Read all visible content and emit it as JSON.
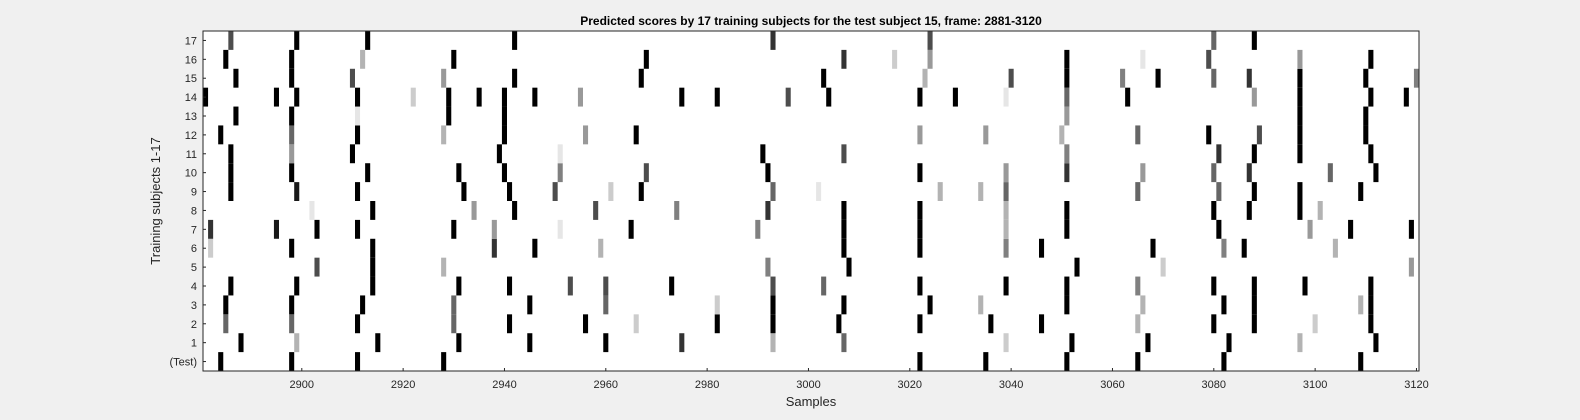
{
  "chart_data": {
    "type": "heatmap",
    "title": "Predicted scores by 17 training subjects for the test subject 15, frame: 2881-3120",
    "xlabel": "Samples",
    "ylabel": "Training subjects 1-17",
    "xlim": [
      2881,
      3120
    ],
    "x_ticks": [
      "2900",
      "2920",
      "2940",
      "2960",
      "2980",
      "3000",
      "3020",
      "3040",
      "3060",
      "3080",
      "3100",
      "3120"
    ],
    "rows": [
      "(Test)",
      "1",
      "2",
      "3",
      "4",
      "5",
      "6",
      "7",
      "8",
      "9",
      "10",
      "11",
      "12",
      "13",
      "14",
      "15",
      "16",
      "17"
    ],
    "colormap": "grayscale: 0 = white, 1 = black",
    "grid": false,
    "cells": {
      "(Test)": [
        [
          2884,
          1
        ],
        [
          2898,
          1
        ],
        [
          2911,
          1
        ],
        [
          2928,
          1
        ],
        [
          3022,
          1
        ],
        [
          3035,
          1
        ],
        [
          3051,
          1
        ],
        [
          3065,
          1
        ],
        [
          3082,
          1
        ],
        [
          3109,
          1
        ]
      ],
      "1": [
        [
          2888,
          1
        ],
        [
          2899,
          0.3
        ],
        [
          2915,
          1
        ],
        [
          2931,
          1
        ],
        [
          2945,
          1
        ],
        [
          2960,
          1
        ],
        [
          2975,
          0.8
        ],
        [
          2993,
          0.3
        ],
        [
          3007,
          0.6
        ],
        [
          3039,
          0.2
        ],
        [
          3052,
          1
        ],
        [
          3067,
          1
        ],
        [
          3083,
          1
        ],
        [
          3097,
          0.3
        ],
        [
          3112,
          1
        ]
      ],
      "2": [
        [
          2885,
          0.6
        ],
        [
          2898,
          0.6
        ],
        [
          2911,
          1
        ],
        [
          2930,
          0.6
        ],
        [
          2941,
          1
        ],
        [
          2956,
          1
        ],
        [
          2966,
          0.2
        ],
        [
          2982,
          1
        ],
        [
          2993,
          1
        ],
        [
          3006,
          1
        ],
        [
          3022,
          1
        ],
        [
          3036,
          1
        ],
        [
          3046,
          1
        ],
        [
          3065,
          0.3
        ],
        [
          3080,
          1
        ],
        [
          3088,
          1
        ],
        [
          3100,
          0.2
        ],
        [
          3111,
          1
        ]
      ],
      "3": [
        [
          2885,
          1
        ],
        [
          2898,
          1
        ],
        [
          2912,
          1
        ],
        [
          2930,
          0.6
        ],
        [
          2945,
          1
        ],
        [
          2960,
          0.6
        ],
        [
          2982,
          0.2
        ],
        [
          2993,
          1
        ],
        [
          3007,
          1
        ],
        [
          3024,
          1
        ],
        [
          3034,
          0.3
        ],
        [
          3051,
          1
        ],
        [
          3066,
          0.3
        ],
        [
          3082,
          1
        ],
        [
          3088,
          1
        ],
        [
          3109,
          0.3
        ],
        [
          3111,
          1
        ]
      ],
      "4": [
        [
          2886,
          1
        ],
        [
          2899,
          1
        ],
        [
          2914,
          1
        ],
        [
          2931,
          1
        ],
        [
          2941,
          1
        ],
        [
          2953,
          0.7
        ],
        [
          2960,
          0.7
        ],
        [
          2973,
          1
        ],
        [
          2993,
          0.7
        ],
        [
          3003,
          0.6
        ],
        [
          3022,
          1
        ],
        [
          3039,
          1
        ],
        [
          3051,
          1
        ],
        [
          3065,
          0.5
        ],
        [
          3080,
          1
        ],
        [
          3088,
          1
        ],
        [
          3098,
          1
        ],
        [
          3111,
          1
        ]
      ],
      "5": [
        [
          2903,
          0.7
        ],
        [
          2914,
          1
        ],
        [
          2928,
          0.3
        ],
        [
          2992,
          0.5
        ],
        [
          3008,
          1
        ],
        [
          3053,
          1
        ],
        [
          3070,
          0.2
        ],
        [
          3119,
          0.4
        ]
      ],
      "6": [
        [
          2882,
          0.2
        ],
        [
          2898,
          1
        ],
        [
          2914,
          1
        ],
        [
          2938,
          0.8
        ],
        [
          2946,
          1
        ],
        [
          2959,
          0.3
        ],
        [
          3007,
          1
        ],
        [
          3022,
          1
        ],
        [
          3039,
          0.5
        ],
        [
          3046,
          1
        ],
        [
          3068,
          1
        ],
        [
          3082,
          0.5
        ],
        [
          3086,
          1
        ],
        [
          3104,
          0.3
        ]
      ],
      "7": [
        [
          2882,
          0.8
        ],
        [
          2895,
          0.9
        ],
        [
          2903,
          1
        ],
        [
          2911,
          1
        ],
        [
          2930,
          1
        ],
        [
          2938,
          0.4
        ],
        [
          2951,
          0.1
        ],
        [
          2965,
          1
        ],
        [
          2990,
          0.5
        ],
        [
          3007,
          1
        ],
        [
          3022,
          1
        ],
        [
          3039,
          0.3
        ],
        [
          3051,
          1
        ],
        [
          3081,
          1
        ],
        [
          3099,
          0.4
        ],
        [
          3107,
          1
        ],
        [
          3119,
          1
        ]
      ],
      "8": [
        [
          2902,
          0.1
        ],
        [
          2914,
          1
        ],
        [
          2934,
          0.4
        ],
        [
          2942,
          1
        ],
        [
          2958,
          0.7
        ],
        [
          2974,
          0.5
        ],
        [
          2992,
          0.8
        ],
        [
          3007,
          1
        ],
        [
          3022,
          1
        ],
        [
          3039,
          0.3
        ],
        [
          3051,
          1
        ],
        [
          3080,
          1
        ],
        [
          3087,
          1
        ],
        [
          3097,
          1
        ],
        [
          3101,
          0.3
        ]
      ],
      "9": [
        [
          2886,
          1
        ],
        [
          2899,
          0.9
        ],
        [
          2911,
          1
        ],
        [
          2932,
          1
        ],
        [
          2941,
          1
        ],
        [
          2950,
          0.7
        ],
        [
          2961,
          0.2
        ],
        [
          2967,
          1
        ],
        [
          2993,
          0.6
        ],
        [
          3002,
          0.1
        ],
        [
          3026,
          0.3
        ],
        [
          3034,
          0.3
        ],
        [
          3039,
          0.6
        ],
        [
          3065,
          0.6
        ],
        [
          3081,
          0.6
        ],
        [
          3088,
          1
        ],
        [
          3097,
          1
        ],
        [
          3109,
          1
        ]
      ],
      "10": [
        [
          2886,
          1
        ],
        [
          2898,
          1
        ],
        [
          2913,
          1
        ],
        [
          2931,
          1
        ],
        [
          2940,
          1
        ],
        [
          2951,
          0.5
        ],
        [
          2968,
          0.7
        ],
        [
          2992,
          1
        ],
        [
          3022,
          1
        ],
        [
          3039,
          0.4
        ],
        [
          3051,
          0.8
        ],
        [
          3066,
          0.4
        ],
        [
          3080,
          0.6
        ],
        [
          3087,
          0.8
        ],
        [
          3103,
          0.6
        ],
        [
          3112,
          1
        ]
      ],
      "11": [
        [
          2886,
          1
        ],
        [
          2898,
          0.4
        ],
        [
          2910,
          1
        ],
        [
          2939,
          1
        ],
        [
          2951,
          0.1
        ],
        [
          2991,
          1
        ],
        [
          3007,
          0.7
        ],
        [
          3051,
          0.5
        ],
        [
          3081,
          0.8
        ],
        [
          3088,
          1
        ],
        [
          3097,
          1
        ],
        [
          3111,
          1
        ]
      ],
      "12": [
        [
          2884,
          1
        ],
        [
          2898,
          0.6
        ],
        [
          2911,
          1
        ],
        [
          2928,
          0.3
        ],
        [
          2940,
          1
        ],
        [
          2956,
          0.4
        ],
        [
          2966,
          1
        ],
        [
          3022,
          0.4
        ],
        [
          3035,
          0.4
        ],
        [
          3050,
          0.3
        ],
        [
          3065,
          0.6
        ],
        [
          3079,
          1
        ],
        [
          3089,
          0.7
        ],
        [
          3097,
          1
        ],
        [
          3110,
          1
        ]
      ],
      "13": [
        [
          2887,
          1
        ],
        [
          2898,
          1
        ],
        [
          2911,
          0.1
        ],
        [
          2929,
          1
        ],
        [
          2940,
          1
        ],
        [
          3051,
          0.4
        ],
        [
          3097,
          1
        ],
        [
          3110,
          1
        ]
      ],
      "14": [
        [
          2881,
          1
        ],
        [
          2895,
          1
        ],
        [
          2899,
          1
        ],
        [
          2911,
          1
        ],
        [
          2922,
          0.2
        ],
        [
          2929,
          1
        ],
        [
          2935,
          1
        ],
        [
          2940,
          1
        ],
        [
          2946,
          1
        ],
        [
          2955,
          0.4
        ],
        [
          2975,
          1
        ],
        [
          2982,
          1
        ],
        [
          2996,
          0.7
        ],
        [
          3004,
          1
        ],
        [
          3022,
          1
        ],
        [
          3029,
          1
        ],
        [
          3039,
          0.1
        ],
        [
          3051,
          0.6
        ],
        [
          3063,
          1
        ],
        [
          3088,
          0.4
        ],
        [
          3097,
          1
        ],
        [
          3111,
          1
        ],
        [
          3118,
          1
        ]
      ],
      "15": [
        [
          2887,
          1
        ],
        [
          2898,
          1
        ],
        [
          2910,
          0.7
        ],
        [
          2928,
          0.4
        ],
        [
          2942,
          1
        ],
        [
          2967,
          1
        ],
        [
          3003,
          1
        ],
        [
          3023,
          0.3
        ],
        [
          3040,
          0.7
        ],
        [
          3051,
          1
        ],
        [
          3062,
          0.5
        ],
        [
          3069,
          1
        ],
        [
          3080,
          0.6
        ],
        [
          3087,
          0.8
        ],
        [
          3097,
          1
        ],
        [
          3110,
          1
        ],
        [
          3120,
          0.5
        ]
      ],
      "16": [
        [
          2885,
          1
        ],
        [
          2898,
          1
        ],
        [
          2912,
          0.3
        ],
        [
          2930,
          1
        ],
        [
          2968,
          1
        ],
        [
          3007,
          0.8
        ],
        [
          3017,
          0.2
        ],
        [
          3024,
          0.4
        ],
        [
          3051,
          1
        ],
        [
          3066,
          0.1
        ],
        [
          3079,
          0.7
        ],
        [
          3097,
          0.4
        ],
        [
          3111,
          1
        ]
      ],
      "17": [
        [
          2886,
          0.7
        ],
        [
          2899,
          1
        ],
        [
          2913,
          1
        ],
        [
          2942,
          1
        ],
        [
          2993,
          0.8
        ],
        [
          3024,
          0.7
        ],
        [
          3080,
          0.6
        ],
        [
          3088,
          1
        ]
      ]
    }
  }
}
